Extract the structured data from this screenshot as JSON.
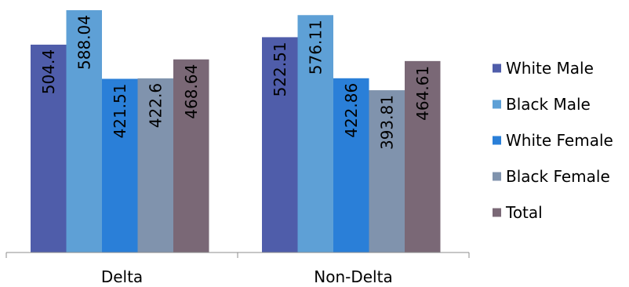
{
  "chart_data": {
    "type": "bar",
    "title": "",
    "xlabel": "",
    "ylabel": "",
    "categories": [
      "Delta",
      "Non-Delta"
    ],
    "series": [
      {
        "name": "White Male",
        "values": [
          504.4,
          522.51
        ],
        "color": "#4F5DAA",
        "value_labels": [
          "504.4",
          "522.51"
        ]
      },
      {
        "name": "Black Male",
        "values": [
          588.04,
          576.11
        ],
        "color": "#5EA0D6",
        "value_labels": [
          "588.04",
          "576.11"
        ]
      },
      {
        "name": "White Female",
        "values": [
          421.51,
          422.86
        ],
        "color": "#2A7FD8",
        "value_labels": [
          "421.51",
          "422.86"
        ]
      },
      {
        "name": "Black Female",
        "values": [
          422.6,
          393.81
        ],
        "color": "#8093AD",
        "value_labels": [
          "422.6",
          "393.81"
        ]
      },
      {
        "name": "Total",
        "values": [
          468.64,
          464.61
        ],
        "color": "#7A6876",
        "value_labels": [
          "468.64",
          "464.61"
        ]
      }
    ],
    "ylim": [
      0,
      600
    ],
    "grid": false,
    "legend_position": "right"
  }
}
